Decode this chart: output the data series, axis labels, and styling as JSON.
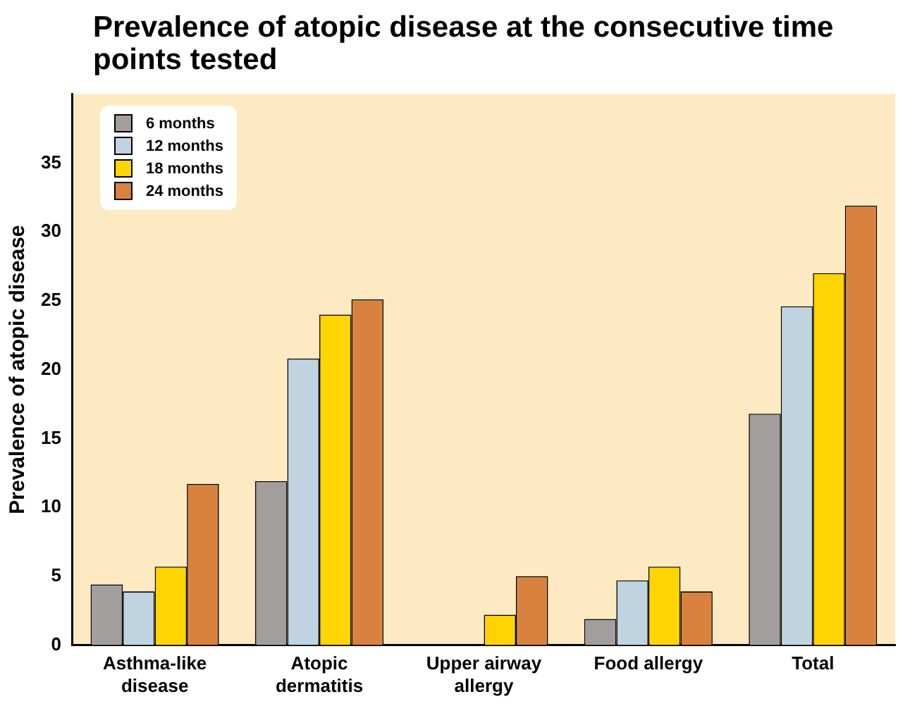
{
  "chart_data": {
    "type": "bar",
    "title": "Prevalence of atopic disease at the consecutive time points tested",
    "ylabel": "Prevalence of atopic disease",
    "categories": [
      "Asthma-like disease",
      "Atopic dermatitis",
      "Upper airway allergy",
      "Food allergy",
      "Total"
    ],
    "series": [
      {
        "name": "6 months",
        "color": "#a39e9e",
        "values": [
          4.4,
          11.9,
          null,
          1.9,
          16.8
        ]
      },
      {
        "name": "12 months",
        "color": "#bfd3e0",
        "values": [
          3.9,
          20.8,
          null,
          4.7,
          24.6
        ]
      },
      {
        "name": "18 months",
        "color": "#ffd400",
        "values": [
          5.7,
          24.0,
          2.2,
          5.7,
          27.0
        ]
      },
      {
        "name": "24 months",
        "color": "#d98240",
        "values": [
          11.7,
          25.1,
          5.0,
          3.9,
          31.9
        ]
      }
    ],
    "ylim": [
      0,
      40
    ],
    "yticks": [
      0,
      5,
      10,
      15,
      20,
      25,
      30,
      35
    ],
    "grid": false,
    "legend": "top left"
  }
}
